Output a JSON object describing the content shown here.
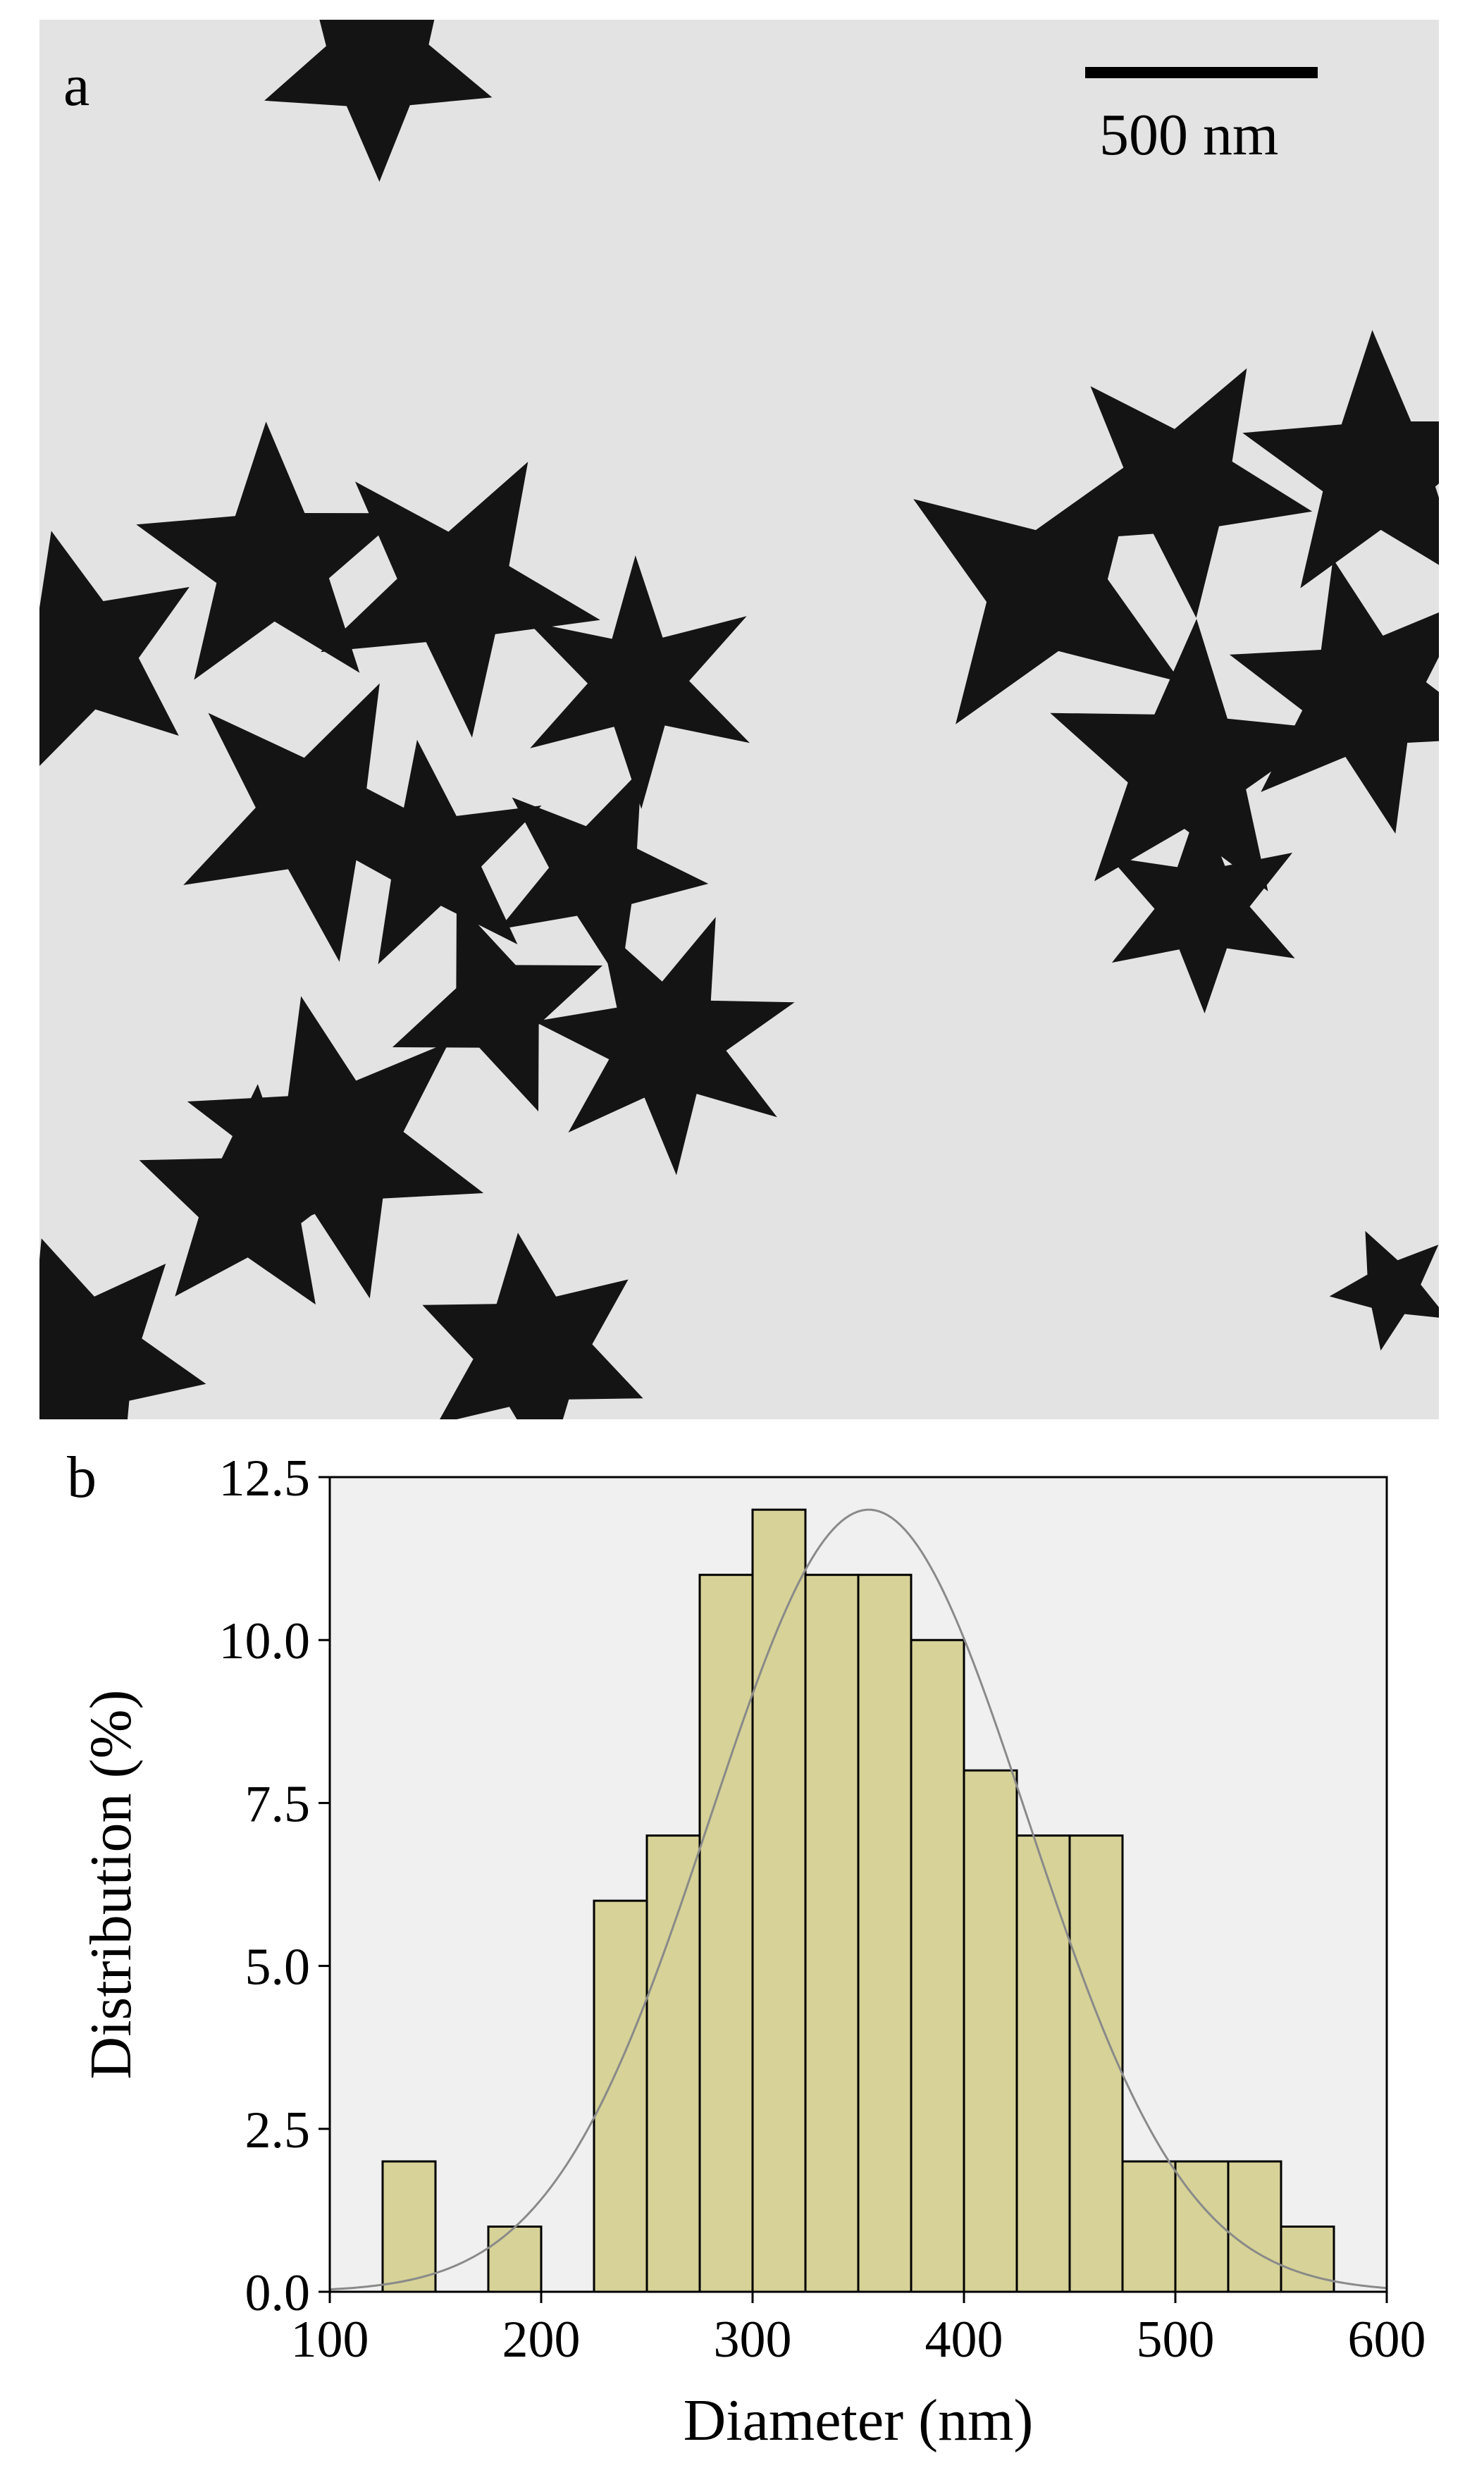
{
  "panel_a": {
    "letter": "a",
    "scale_bar_label": "500 nm"
  },
  "panel_b": {
    "letter": "b"
  },
  "chart_data": {
    "type": "bar",
    "title": "",
    "xlabel": "Diameter (nm)",
    "ylabel": "Distribution (%)",
    "xlim": [
      100,
      600
    ],
    "ylim": [
      0,
      12.5
    ],
    "x_ticks": [
      "100",
      "200",
      "300",
      "400",
      "500",
      "600"
    ],
    "x_tick_values": [
      100,
      200,
      300,
      400,
      500,
      600
    ],
    "y_ticks": [
      "0.0",
      "2.5",
      "5.0",
      "7.5",
      "10.0",
      "12.5"
    ],
    "y_tick_values": [
      0,
      2.5,
      5,
      7.5,
      10,
      12.5
    ],
    "bin_width": 25,
    "bin_starts": [
      125,
      175,
      225,
      250,
      275,
      300,
      325,
      350,
      375,
      400,
      425,
      450,
      475,
      500,
      525,
      550
    ],
    "values": [
      2,
      1,
      6,
      7,
      11,
      12,
      11,
      11,
      10,
      8,
      7,
      7,
      2,
      2,
      2,
      1
    ],
    "fit_curve": {
      "type": "normal",
      "mean": 355,
      "sd": 75,
      "peak": 12
    },
    "grid": false,
    "bar_color": "#d7d297",
    "plot_background": "#f0f0f0"
  }
}
